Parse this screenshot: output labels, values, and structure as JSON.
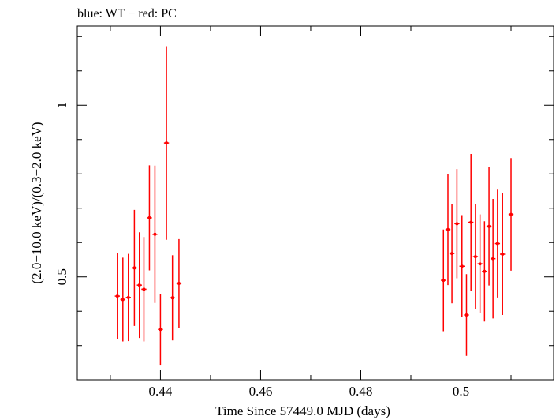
{
  "chart_data": {
    "type": "scatter",
    "title": "blue: WT − red: PC",
    "xlabel": "Time Since 57449.0 MJD (days)",
    "ylabel": "(2.0−10.0 keV)/(0.3−2.0 keV)",
    "xlim": [
      0.4234,
      0.5185
    ],
    "ylim": [
      0.2005,
      1.2305
    ],
    "x_ticks": [
      0.44,
      0.46,
      0.48,
      0.5
    ],
    "x_tick_labels": [
      "0.44",
      "0.46",
      "0.48",
      "0.5"
    ],
    "y_ticks": [
      0.5,
      1.0
    ],
    "y_tick_labels": [
      "0.5",
      "1"
    ],
    "grid": false,
    "series": [
      {
        "color": "#ff0000",
        "points": [
          {
            "x": 0.4314,
            "y": 0.444,
            "err_lo": 0.126,
            "err_hi": 0.126,
            "xerr": 0.0005
          },
          {
            "x": 0.4325,
            "y": 0.434,
            "err_lo": 0.122,
            "err_hi": 0.122,
            "xerr": 0.0005
          },
          {
            "x": 0.4336,
            "y": 0.44,
            "err_lo": 0.127,
            "err_hi": 0.127,
            "xerr": 0.0005
          },
          {
            "x": 0.4348,
            "y": 0.526,
            "err_lo": 0.169,
            "err_hi": 0.169,
            "xerr": 0.0005
          },
          {
            "x": 0.4358,
            "y": 0.476,
            "err_lo": 0.154,
            "err_hi": 0.154,
            "xerr": 0.0005
          },
          {
            "x": 0.4367,
            "y": 0.464,
            "err_lo": 0.152,
            "err_hi": 0.152,
            "xerr": 0.0005
          },
          {
            "x": 0.4378,
            "y": 0.672,
            "err_lo": 0.153,
            "err_hi": 0.153,
            "xerr": 0.0005
          },
          {
            "x": 0.4389,
            "y": 0.624,
            "err_lo": 0.2,
            "err_hi": 0.2,
            "xerr": 0.0005
          },
          {
            "x": 0.44,
            "y": 0.347,
            "err_lo": 0.103,
            "err_hi": 0.103,
            "xerr": 0.0005
          },
          {
            "x": 0.4412,
            "y": 0.89,
            "err_lo": 0.282,
            "err_hi": 0.282,
            "xerr": 0.0005
          },
          {
            "x": 0.4424,
            "y": 0.439,
            "err_lo": 0.124,
            "err_hi": 0.124,
            "xerr": 0.0005
          },
          {
            "x": 0.4437,
            "y": 0.481,
            "err_lo": 0.129,
            "err_hi": 0.129,
            "xerr": 0.0005
          },
          {
            "x": 0.4965,
            "y": 0.49,
            "err_lo": 0.148,
            "err_hi": 0.148,
            "xerr": 0.0005
          },
          {
            "x": 0.4974,
            "y": 0.638,
            "err_lo": 0.162,
            "err_hi": 0.162,
            "xerr": 0.0005
          },
          {
            "x": 0.4982,
            "y": 0.568,
            "err_lo": 0.145,
            "err_hi": 0.145,
            "xerr": 0.0005
          },
          {
            "x": 0.4992,
            "y": 0.655,
            "err_lo": 0.159,
            "err_hi": 0.159,
            "xerr": 0.0005
          },
          {
            "x": 0.5002,
            "y": 0.531,
            "err_lo": 0.149,
            "err_hi": 0.149,
            "xerr": 0.0005
          },
          {
            "x": 0.5011,
            "y": 0.389,
            "err_lo": 0.119,
            "err_hi": 0.119,
            "xerr": 0.0005
          },
          {
            "x": 0.502,
            "y": 0.659,
            "err_lo": 0.199,
            "err_hi": 0.199,
            "xerr": 0.0005
          },
          {
            "x": 0.5029,
            "y": 0.559,
            "err_lo": 0.153,
            "err_hi": 0.153,
            "xerr": 0.0005
          },
          {
            "x": 0.5038,
            "y": 0.538,
            "err_lo": 0.144,
            "err_hi": 0.144,
            "xerr": 0.0005
          },
          {
            "x": 0.5047,
            "y": 0.516,
            "err_lo": 0.146,
            "err_hi": 0.146,
            "xerr": 0.0005
          },
          {
            "x": 0.5056,
            "y": 0.647,
            "err_lo": 0.172,
            "err_hi": 0.172,
            "xerr": 0.0005
          },
          {
            "x": 0.5064,
            "y": 0.553,
            "err_lo": 0.174,
            "err_hi": 0.174,
            "xerr": 0.0005
          },
          {
            "x": 0.5073,
            "y": 0.597,
            "err_lo": 0.157,
            "err_hi": 0.157,
            "xerr": 0.0005
          },
          {
            "x": 0.5083,
            "y": 0.566,
            "err_lo": 0.177,
            "err_hi": 0.177,
            "xerr": 0.0005
          },
          {
            "x": 0.51,
            "y": 0.682,
            "err_lo": 0.164,
            "err_hi": 0.164,
            "xerr": 0.0005
          }
        ]
      }
    ]
  }
}
